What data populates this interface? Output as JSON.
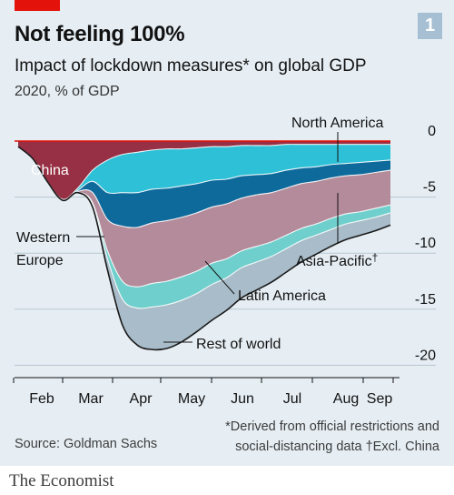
{
  "header": {
    "badge": "1",
    "title": "Not feeling 100%",
    "subtitle": "Impact of lockdown measures* on global GDP",
    "units": "2020, % of GDP"
  },
  "footer": {
    "footnote_line1": "*Derived from official restrictions and",
    "footnote_line2": "social-distancing data ",
    "footnote_dagger": "†Excl. China",
    "source": "Source: Goldman Sachs",
    "brand": "The Economist"
  },
  "colors": {
    "background": "#e6eef4",
    "accent_red": "#e3120b",
    "China": "#973044",
    "North America": "#2ec0d6",
    "Western Europe": "#0e6a9b",
    "Asia-Pacific": "#b48b9a",
    "Latin America": "#6fcfcc",
    "Rest of world": "#a9bcc9"
  },
  "chart_data": {
    "type": "area",
    "stacked": true,
    "x_unit": "weeks of 2020",
    "x_tick_labels": [
      "Feb",
      "Mar",
      "Apr",
      "May",
      "Jun",
      "Jul",
      "Aug",
      "Sep"
    ],
    "x": [
      "Jan 8",
      "Jan 22",
      "Feb 5",
      "Feb 19",
      "Mar 4",
      "Mar 11",
      "Mar 18",
      "Mar 25",
      "Apr 1",
      "Apr 8",
      "Apr 15",
      "Apr 22",
      "Apr 29",
      "May 6",
      "May 13",
      "May 20",
      "May 27",
      "Jun 3",
      "Jun 17",
      "Jul 1",
      "Jul 15",
      "Jul 29",
      "Aug 12",
      "Aug 26",
      "Sep 9",
      "Sep 23"
    ],
    "series": [
      {
        "name": "China",
        "values": [
          -0.5,
          -1.6,
          -3.7,
          -5.2,
          -4.2,
          -2.6,
          -1.7,
          -1.2,
          -1.0,
          -0.8,
          -0.7,
          -0.7,
          -0.6,
          -0.5,
          -0.5,
          -0.4,
          -0.4,
          -0.4,
          -0.3,
          -0.3,
          -0.3,
          -0.3,
          -0.3,
          -0.3,
          -0.3,
          -0.3
        ]
      },
      {
        "name": "North America",
        "values": [
          0,
          0,
          0,
          -0.1,
          -0.2,
          -1.0,
          -2.9,
          -3.4,
          -3.6,
          -3.5,
          -3.5,
          -3.3,
          -3.2,
          -3.0,
          -2.9,
          -2.7,
          -2.6,
          -2.5,
          -2.3,
          -2.1,
          -2.0,
          -1.8,
          -1.7,
          -1.6,
          -1.5,
          -1.4
        ]
      },
      {
        "name": "Western Europe",
        "values": [
          0,
          0,
          0,
          0,
          -0.1,
          -1.0,
          -2.4,
          -3.0,
          -3.1,
          -3.0,
          -2.9,
          -2.8,
          -2.6,
          -2.4,
          -2.2,
          -2.0,
          -1.8,
          -1.7,
          -1.6,
          -1.4,
          -1.3,
          -1.2,
          -1.1,
          -1.1,
          -1.0,
          -0.9
        ]
      },
      {
        "name": "Asia-Pacific",
        "values": [
          0,
          0,
          0,
          0,
          -0.1,
          -0.9,
          -2.8,
          -4.9,
          -5.3,
          -5.4,
          -5.4,
          -5.3,
          -5.2,
          -5.0,
          -4.9,
          -4.7,
          -4.6,
          -4.4,
          -4.2,
          -4.0,
          -3.8,
          -3.6,
          -3.4,
          -3.3,
          -3.2,
          -3.1
        ]
      },
      {
        "name": "Latin America",
        "values": [
          0,
          0,
          0,
          0,
          0,
          -0.2,
          -0.7,
          -1.6,
          -1.9,
          -2.1,
          -2.1,
          -2.1,
          -2.0,
          -1.9,
          -1.7,
          -1.5,
          -1.4,
          -1.3,
          -1.2,
          -1.1,
          -1.0,
          -1.0,
          -0.9,
          -0.8,
          -0.8,
          -0.7
        ]
      },
      {
        "name": "Rest of world",
        "values": [
          0,
          0,
          0,
          0,
          0,
          -0.2,
          -1.0,
          -2.3,
          -3.3,
          -3.8,
          -3.9,
          -3.7,
          -3.4,
          -3.2,
          -2.9,
          -2.7,
          -2.5,
          -2.3,
          -2.1,
          -1.9,
          -1.7,
          -1.5,
          -1.4,
          -1.3,
          -1.2,
          -1.1
        ]
      }
    ],
    "ylim": [
      -20.7,
      0
    ],
    "y_ticks": [
      0,
      -5,
      -10,
      -15,
      -20
    ],
    "y_tick_labels": [
      "0",
      "-5",
      "-10",
      "-15",
      "-20"
    ],
    "y_axis_side": "right",
    "grid": true,
    "legend": "direct labels on areas",
    "labels": {
      "north_america": "North America",
      "china": "China",
      "western_europe_1": "Western",
      "western_europe_2": "Europe",
      "asia_pacific": "Asia-Pacific",
      "asia_pacific_dagger": "†",
      "latin_america": "Latin America",
      "rest_of_world": "Rest of world"
    }
  }
}
